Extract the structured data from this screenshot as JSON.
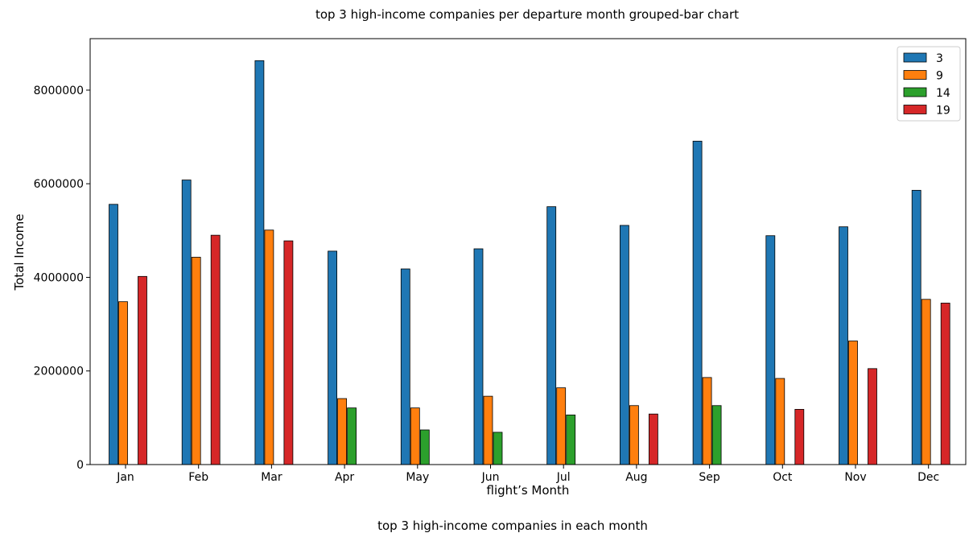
{
  "chart_data": {
    "type": "bar",
    "title": "top 3 high-income companies per departure month grouped-bar chart",
    "caption": "top 3 high-income companies in each month",
    "xlabel": "flight’s Month",
    "ylabel": "Total Income",
    "categories": [
      "Jan",
      "Feb",
      "Mar",
      "Apr",
      "May",
      "Jun",
      "Jul",
      "Aug",
      "Sep",
      "Oct",
      "Nov",
      "Dec"
    ],
    "ylim": [
      0,
      9100000
    ],
    "yticks": [
      0,
      2000000,
      4000000,
      6000000,
      8000000
    ],
    "ytick_labels": [
      "0",
      "2000000",
      "4000000",
      "6000000",
      "8000000"
    ],
    "legend_position": "top-right",
    "series": [
      {
        "name": "3",
        "color": "#1f77b4",
        "values": [
          5560000,
          6080000,
          8630000,
          4560000,
          4180000,
          4610000,
          5510000,
          5110000,
          6910000,
          4890000,
          5080000,
          5860000
        ]
      },
      {
        "name": "9",
        "color": "#ff7f0e",
        "values": [
          3480000,
          4430000,
          5010000,
          1410000,
          1210000,
          1460000,
          1640000,
          1260000,
          1860000,
          1840000,
          2640000,
          3530000
        ]
      },
      {
        "name": "14",
        "color": "#2ca02c",
        "values": [
          null,
          null,
          null,
          1210000,
          740000,
          690000,
          1060000,
          null,
          1260000,
          null,
          null,
          null
        ]
      },
      {
        "name": "19",
        "color": "#d62728",
        "values": [
          4020000,
          4900000,
          4780000,
          null,
          null,
          null,
          null,
          1080000,
          null,
          1180000,
          2050000,
          3450000
        ]
      }
    ]
  }
}
